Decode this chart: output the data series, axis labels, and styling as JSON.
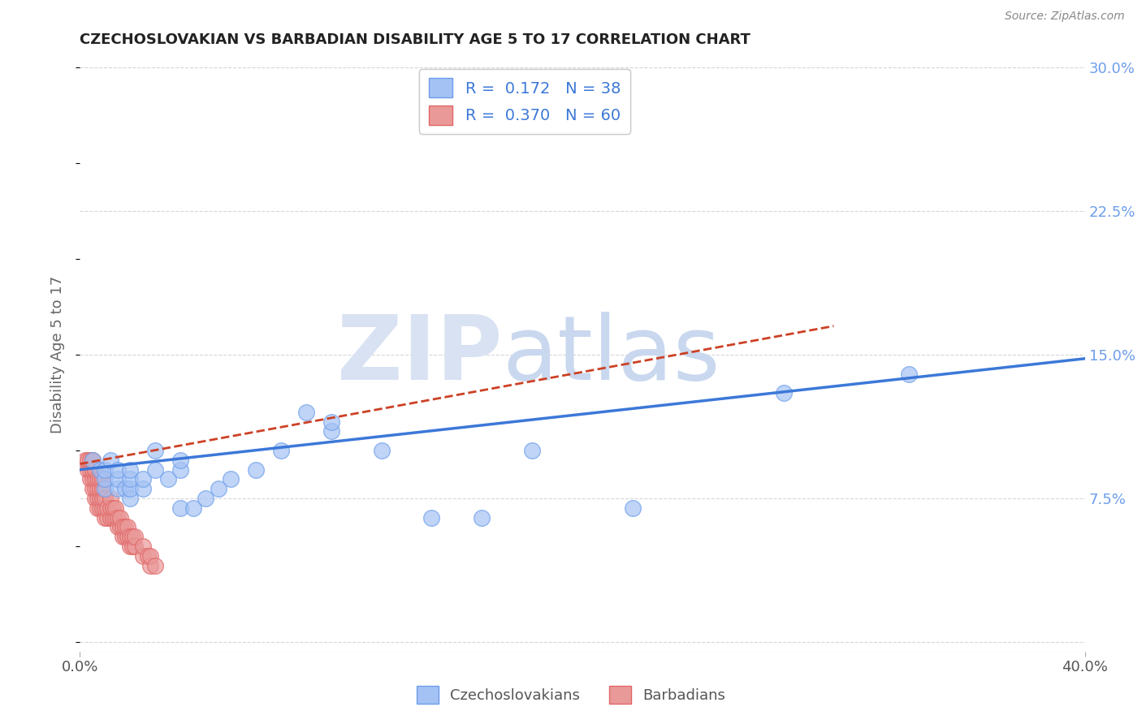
{
  "title": "CZECHOSLOVAKIAN VS BARBADIAN DISABILITY AGE 5 TO 17 CORRELATION CHART",
  "source": "Source: ZipAtlas.com",
  "ylabel": "Disability Age 5 to 17",
  "xlim": [
    0.0,
    0.4
  ],
  "ylim": [
    -0.005,
    0.305
  ],
  "blue_color": "#a4c2f4",
  "blue_edge_color": "#6d9eeb",
  "pink_color": "#ea9999",
  "pink_edge_color": "#e06666",
  "blue_line_color": "#3c78d8",
  "pink_line_color": "#cc4125",
  "grid_color": "#cccccc",
  "title_color": "#222222",
  "axis_label_color": "#666666",
  "right_tick_color": "#6d9eeb",
  "legend_text_color": "#3c78d8",
  "bg_color": "#ffffff",
  "watermark_zip_color": "#d9e2f3",
  "watermark_atlas_color": "#c9d8ef",
  "czecho_scatter_x": [
    0.005,
    0.008,
    0.01,
    0.01,
    0.01,
    0.012,
    0.015,
    0.015,
    0.015,
    0.018,
    0.02,
    0.02,
    0.02,
    0.02,
    0.025,
    0.025,
    0.03,
    0.03,
    0.035,
    0.04,
    0.04,
    0.04,
    0.045,
    0.05,
    0.055,
    0.06,
    0.07,
    0.08,
    0.09,
    0.1,
    0.1,
    0.12,
    0.14,
    0.16,
    0.18,
    0.22,
    0.28,
    0.33
  ],
  "czecho_scatter_y": [
    0.095,
    0.09,
    0.08,
    0.085,
    0.09,
    0.095,
    0.08,
    0.085,
    0.09,
    0.08,
    0.075,
    0.08,
    0.085,
    0.09,
    0.08,
    0.085,
    0.09,
    0.1,
    0.085,
    0.09,
    0.095,
    0.07,
    0.07,
    0.075,
    0.08,
    0.085,
    0.09,
    0.1,
    0.12,
    0.11,
    0.115,
    0.1,
    0.065,
    0.065,
    0.1,
    0.07,
    0.13,
    0.14
  ],
  "barbadian_scatter_x": [
    0.002,
    0.003,
    0.003,
    0.004,
    0.004,
    0.004,
    0.005,
    0.005,
    0.005,
    0.005,
    0.006,
    0.006,
    0.006,
    0.006,
    0.007,
    0.007,
    0.007,
    0.007,
    0.008,
    0.008,
    0.008,
    0.008,
    0.009,
    0.009,
    0.009,
    0.009,
    0.01,
    0.01,
    0.01,
    0.011,
    0.011,
    0.012,
    0.012,
    0.012,
    0.013,
    0.013,
    0.014,
    0.014,
    0.015,
    0.015,
    0.016,
    0.016,
    0.017,
    0.017,
    0.018,
    0.018,
    0.019,
    0.019,
    0.02,
    0.02,
    0.021,
    0.021,
    0.022,
    0.022,
    0.025,
    0.025,
    0.027,
    0.028,
    0.028,
    0.03
  ],
  "barbadian_scatter_y": [
    0.095,
    0.09,
    0.095,
    0.085,
    0.09,
    0.095,
    0.08,
    0.085,
    0.09,
    0.095,
    0.075,
    0.08,
    0.085,
    0.09,
    0.07,
    0.075,
    0.08,
    0.085,
    0.07,
    0.075,
    0.08,
    0.085,
    0.07,
    0.075,
    0.08,
    0.085,
    0.065,
    0.07,
    0.075,
    0.065,
    0.07,
    0.065,
    0.07,
    0.075,
    0.065,
    0.07,
    0.065,
    0.07,
    0.06,
    0.065,
    0.06,
    0.065,
    0.055,
    0.06,
    0.055,
    0.06,
    0.055,
    0.06,
    0.05,
    0.055,
    0.05,
    0.055,
    0.05,
    0.055,
    0.045,
    0.05,
    0.045,
    0.04,
    0.045,
    0.04
  ],
  "czecho_trend_x": [
    0.0,
    0.4
  ],
  "czecho_trend_y": [
    0.09,
    0.148
  ],
  "barbadian_trend_x": [
    0.0,
    0.3
  ],
  "barbadian_trend_y": [
    0.093,
    0.165
  ],
  "y_ticks": [
    0.0,
    0.075,
    0.15,
    0.225,
    0.3
  ],
  "y_tick_labels": [
    "",
    "7.5%",
    "15.0%",
    "22.5%",
    "30.0%"
  ],
  "x_ticks": [
    0.0,
    0.4
  ],
  "x_tick_labels": [
    "0.0%",
    "40.0%"
  ]
}
